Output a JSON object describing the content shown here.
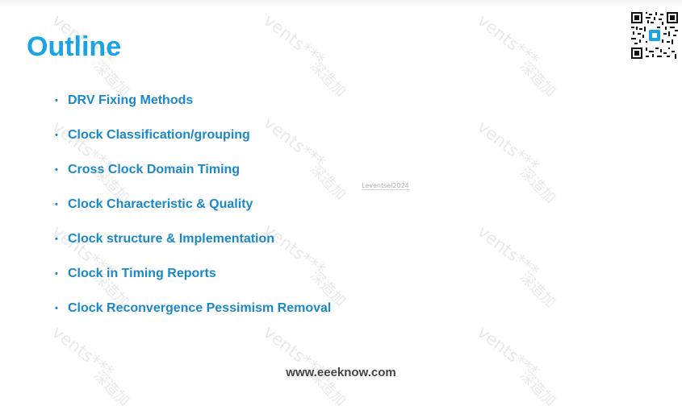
{
  "slide": {
    "title": "Outline",
    "bullet_symbol": "•",
    "items": [
      "DRV Fixing Methods",
      "Clock Classification/grouping",
      "Cross Clock Domain Timing",
      "Clock Characteristic & Quality",
      "Clock structure & Implementation",
      "Clock in Timing Reports",
      "Clock Reconvergence Pessimism Removal"
    ],
    "footer": "www.eeeknow.com",
    "stamp": "Leventsel2024"
  },
  "watermark": {
    "text_a": "vents***",
    "text_b": "深造加"
  },
  "qr": {
    "icon": "qr-code-icon"
  },
  "colors": {
    "title": "#1aa3e5",
    "bullet_text": "#1a88c9",
    "footer": "#444444"
  }
}
